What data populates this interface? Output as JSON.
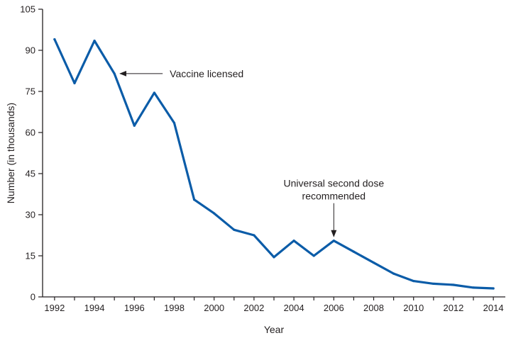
{
  "chart_data": {
    "type": "line",
    "title": "",
    "xlabel": "Year",
    "ylabel": "Number (in thousands)",
    "xlim": [
      1991.4,
      2014.6
    ],
    "ylim": [
      0,
      105
    ],
    "x_ticks": [
      1992,
      1994,
      1996,
      1998,
      2000,
      2002,
      2004,
      2006,
      2008,
      2010,
      2012,
      2014
    ],
    "x_tick_labels": [
      "1992",
      "1994",
      "1996",
      "1998",
      "2000",
      "2002",
      "2004",
      "2006",
      "2008",
      "2010",
      "2012",
      "2014"
    ],
    "y_ticks": [
      0,
      15,
      30,
      45,
      60,
      75,
      90,
      105
    ],
    "y_tick_labels": [
      "0",
      "15",
      "30",
      "45",
      "60",
      "75",
      "90",
      "105"
    ],
    "grid": false,
    "legend": "none",
    "series": [
      {
        "color": "#0b5ca8",
        "x": [
          1992,
          1993,
          1994,
          1995,
          1996,
          1997,
          1998,
          1999,
          2000,
          2001,
          2002,
          2003,
          2004,
          2005,
          2006,
          2007,
          2008,
          2009,
          2010,
          2011,
          2012,
          2013,
          2014
        ],
        "values": [
          94,
          78,
          93.5,
          81.5,
          62.5,
          74.5,
          63.5,
          35.5,
          30.5,
          24.5,
          22.5,
          14.5,
          20.5,
          15,
          20.5,
          16.5,
          12.5,
          8.5,
          5.8,
          4.8,
          4.4,
          3.4,
          3.1
        ]
      }
    ],
    "annotations": [
      {
        "lines": [
          "Vaccine licensed"
        ],
        "x": 1995,
        "y": 81.5,
        "arrow": "left"
      },
      {
        "lines": [
          "Universal second dose",
          "recommended"
        ],
        "x": 2006,
        "y": 20.5,
        "arrow": "down"
      }
    ]
  }
}
